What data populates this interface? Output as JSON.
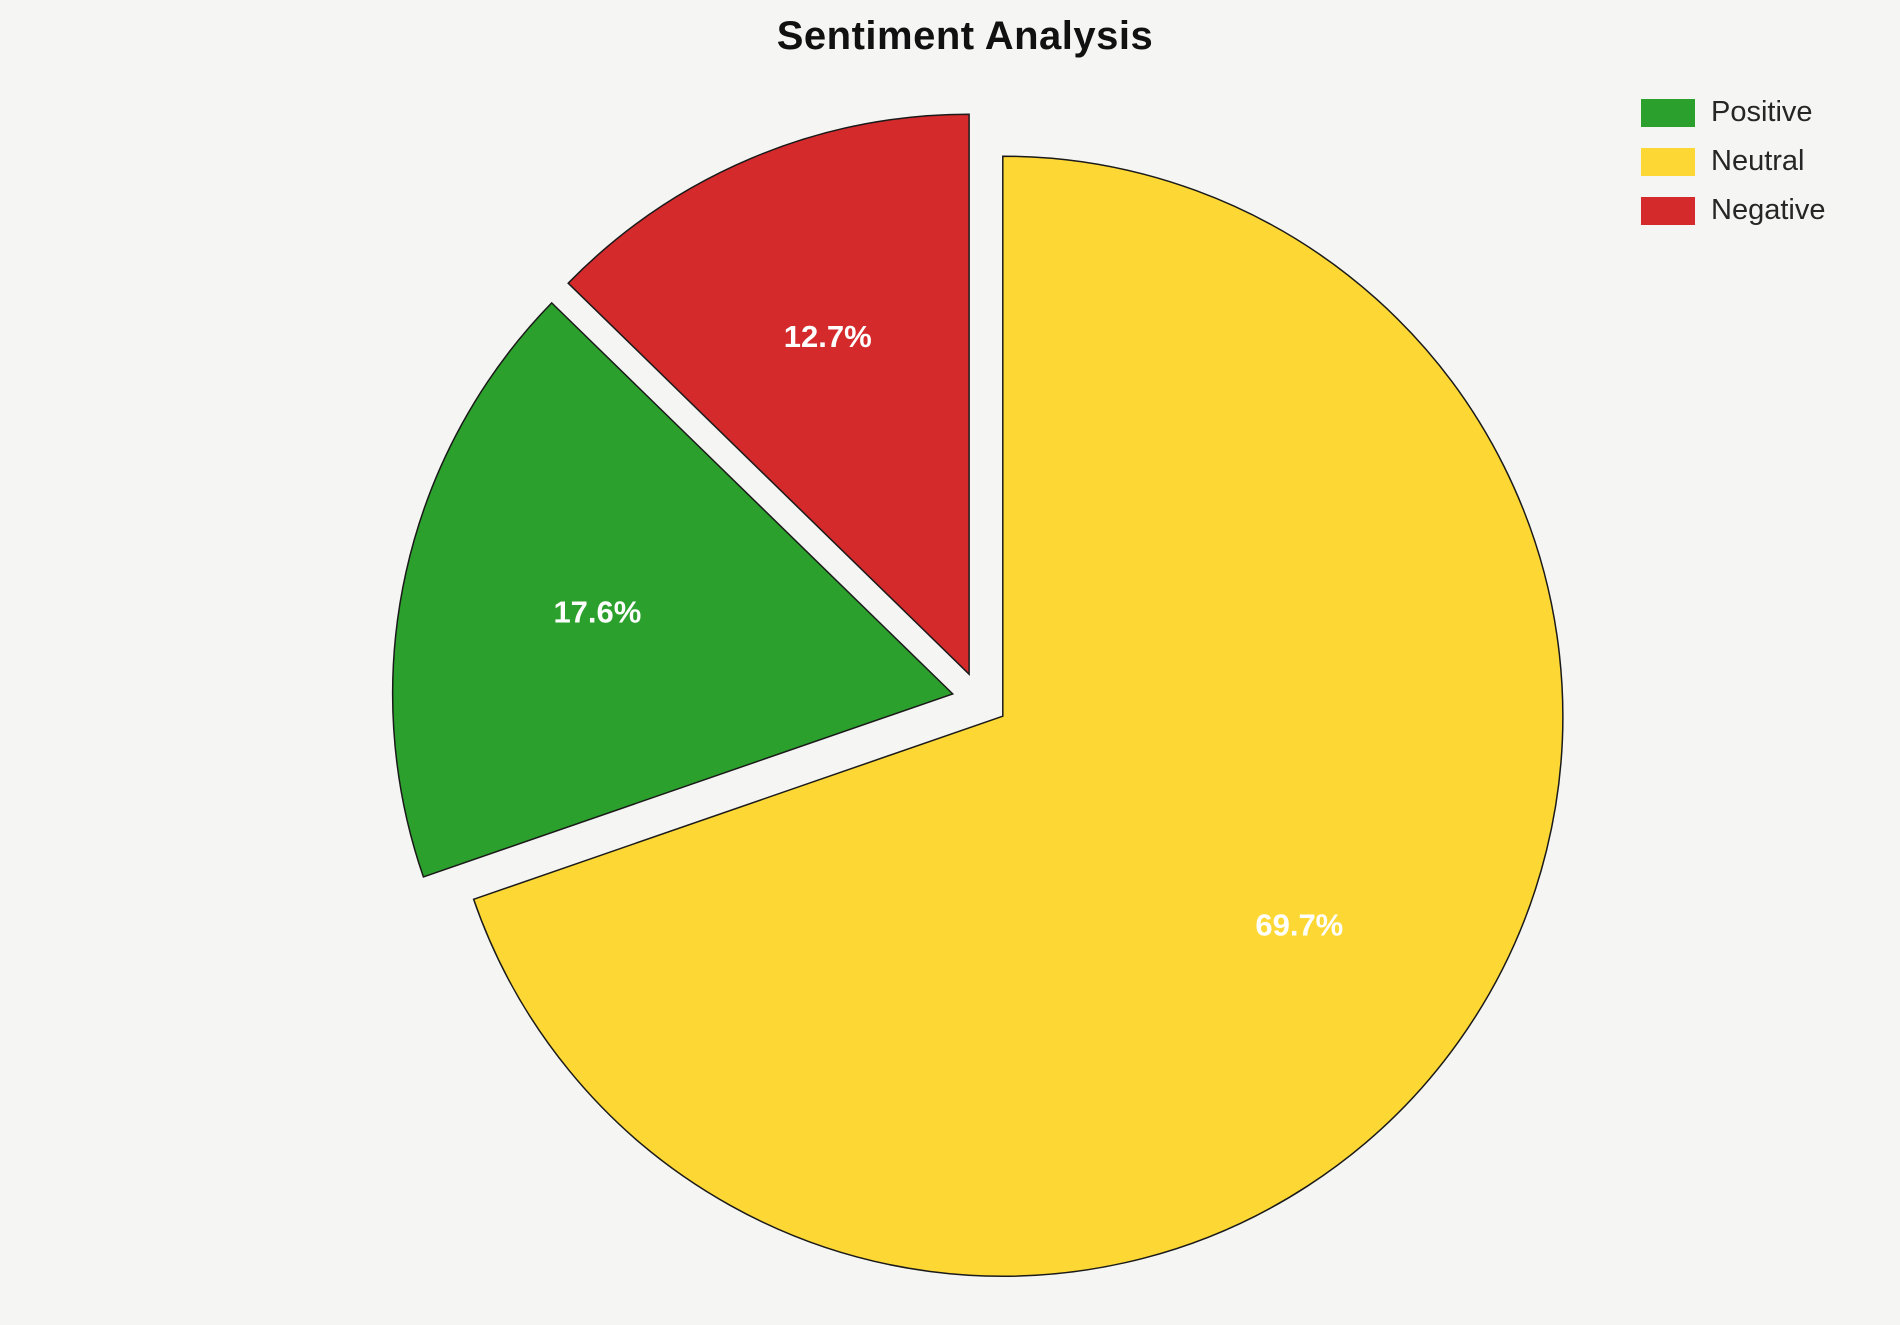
{
  "page": {
    "background_color": "#f5f5f3"
  },
  "chart_data": {
    "type": "pie",
    "title": "Sentiment Analysis",
    "labels": [
      "Positive",
      "Neutral",
      "Negative"
    ],
    "values": [
      17.6,
      69.7,
      12.7
    ],
    "pct_labels": [
      "17.6%",
      "69.7%",
      "12.7%"
    ],
    "colors": [
      "#2ca02c",
      "#fdd835",
      "#d42a2c"
    ],
    "explode": [
      0.05,
      0.05,
      0.05
    ],
    "start_angle_deg": 90,
    "draw_order_ccw": [
      2,
      0,
      1
    ],
    "edge_color": "#1a1a1a",
    "pct_label_color": "#ffffff",
    "legend_position": "upper right",
    "legend": [
      {
        "label": "Positive",
        "color": "#2ca02c"
      },
      {
        "label": "Neutral",
        "color": "#fdd835"
      },
      {
        "label": "Negative",
        "color": "#d42a2c"
      }
    ]
  }
}
